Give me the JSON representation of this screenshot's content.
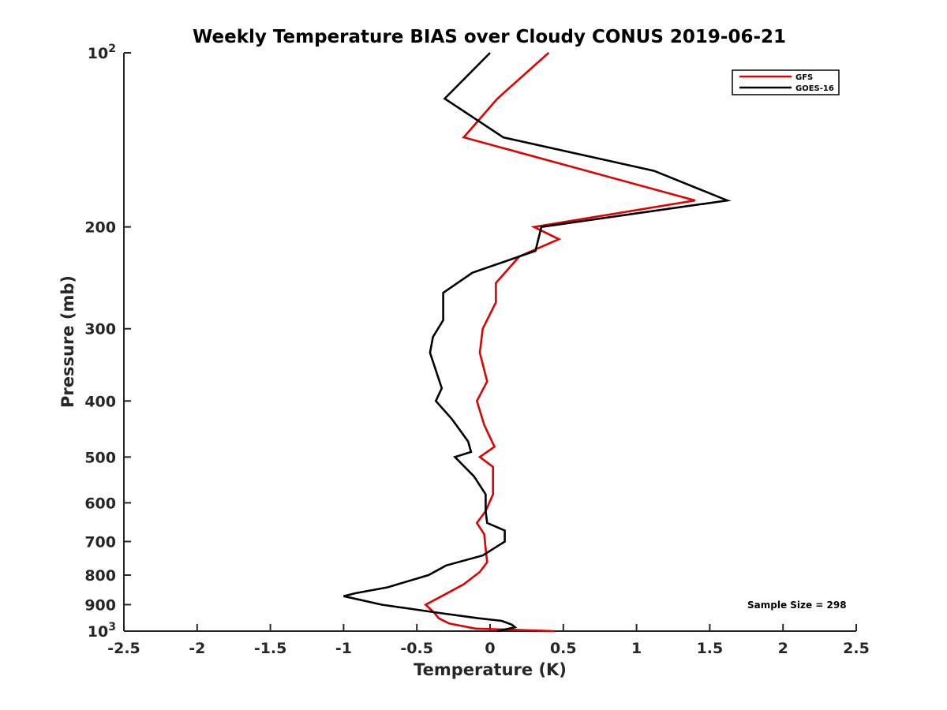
{
  "chart_data": {
    "type": "line",
    "title": "Weekly Temperature BIAS over Cloudy CONUS 2019-06-21",
    "xlabel": "Temperature (K)",
    "ylabel": "Pressure (mb)",
    "xlim": [
      -2.5,
      2.5
    ],
    "ylim": [
      100,
      1000
    ],
    "yscale": "log",
    "y_reversed": true,
    "grid": false,
    "legend_position": "top-right",
    "annotation": "Sample Size = 298",
    "x_ticks": [
      -2.5,
      -2,
      -1.5,
      -1,
      -0.5,
      0,
      0.5,
      1,
      1.5,
      2,
      2.5
    ],
    "x_tick_labels": [
      "-2.5",
      "-2",
      "-1.5",
      "-1",
      "-0.5",
      "0",
      "0.5",
      "1",
      "1.5",
      "2",
      "2.5"
    ],
    "y_ticks": [
      100,
      200,
      300,
      400,
      500,
      600,
      700,
      800,
      900,
      1000
    ],
    "y_tick_labels": [
      "10^2",
      "200",
      "300",
      "400",
      "500",
      "600",
      "700",
      "800",
      "900",
      "10^3"
    ],
    "series": [
      {
        "name": "GFS",
        "color": "#e00000",
        "points": [
          [
            0.4,
            100
          ],
          [
            0.05,
            120
          ],
          [
            -0.18,
            140
          ],
          [
            1.4,
            180
          ],
          [
            0.3,
            200
          ],
          [
            0.47,
            210
          ],
          [
            0.2,
            225
          ],
          [
            0.04,
            250
          ],
          [
            0.04,
            270
          ],
          [
            -0.05,
            300
          ],
          [
            -0.07,
            330
          ],
          [
            -0.02,
            370
          ],
          [
            -0.09,
            400
          ],
          [
            -0.04,
            440
          ],
          [
            0.03,
            480
          ],
          [
            -0.07,
            500
          ],
          [
            0.02,
            520
          ],
          [
            0.02,
            580
          ],
          [
            -0.03,
            620
          ],
          [
            -0.09,
            650
          ],
          [
            -0.04,
            680
          ],
          [
            -0.03,
            720
          ],
          [
            -0.02,
            760
          ],
          [
            -0.07,
            790
          ],
          [
            -0.18,
            830
          ],
          [
            -0.33,
            870
          ],
          [
            -0.44,
            900
          ],
          [
            -0.38,
            930
          ],
          [
            -0.35,
            950
          ],
          [
            -0.28,
            970
          ],
          [
            -0.1,
            990
          ],
          [
            0.44,
            1000
          ]
        ]
      },
      {
        "name": "GOES-16",
        "color": "#000000",
        "points": [
          [
            0,
            100
          ],
          [
            -0.31,
            120
          ],
          [
            0.09,
            140
          ],
          [
            1.12,
            160
          ],
          [
            1.62,
            180
          ],
          [
            0.35,
            200
          ],
          [
            0.31,
            220
          ],
          [
            -0.12,
            240
          ],
          [
            -0.32,
            260
          ],
          [
            -0.32,
            290
          ],
          [
            -0.39,
            310
          ],
          [
            -0.41,
            330
          ],
          [
            -0.33,
            380
          ],
          [
            -0.37,
            400
          ],
          [
            -0.26,
            430
          ],
          [
            -0.15,
            470
          ],
          [
            -0.13,
            490
          ],
          [
            -0.24,
            500
          ],
          [
            -0.11,
            540
          ],
          [
            -0.03,
            580
          ],
          [
            -0.03,
            620
          ],
          [
            -0.02,
            650
          ],
          [
            0.1,
            670
          ],
          [
            0.1,
            700
          ],
          [
            -0.05,
            740
          ],
          [
            -0.3,
            770
          ],
          [
            -0.42,
            800
          ],
          [
            -0.7,
            840
          ],
          [
            -0.92,
            860
          ],
          [
            -1,
            870
          ],
          [
            -0.74,
            900
          ],
          [
            -0.35,
            930
          ],
          [
            -0.08,
            950
          ],
          [
            0.08,
            960
          ],
          [
            0.15,
            975
          ],
          [
            0.17,
            985
          ],
          [
            0.05,
            1000
          ]
        ]
      }
    ]
  }
}
